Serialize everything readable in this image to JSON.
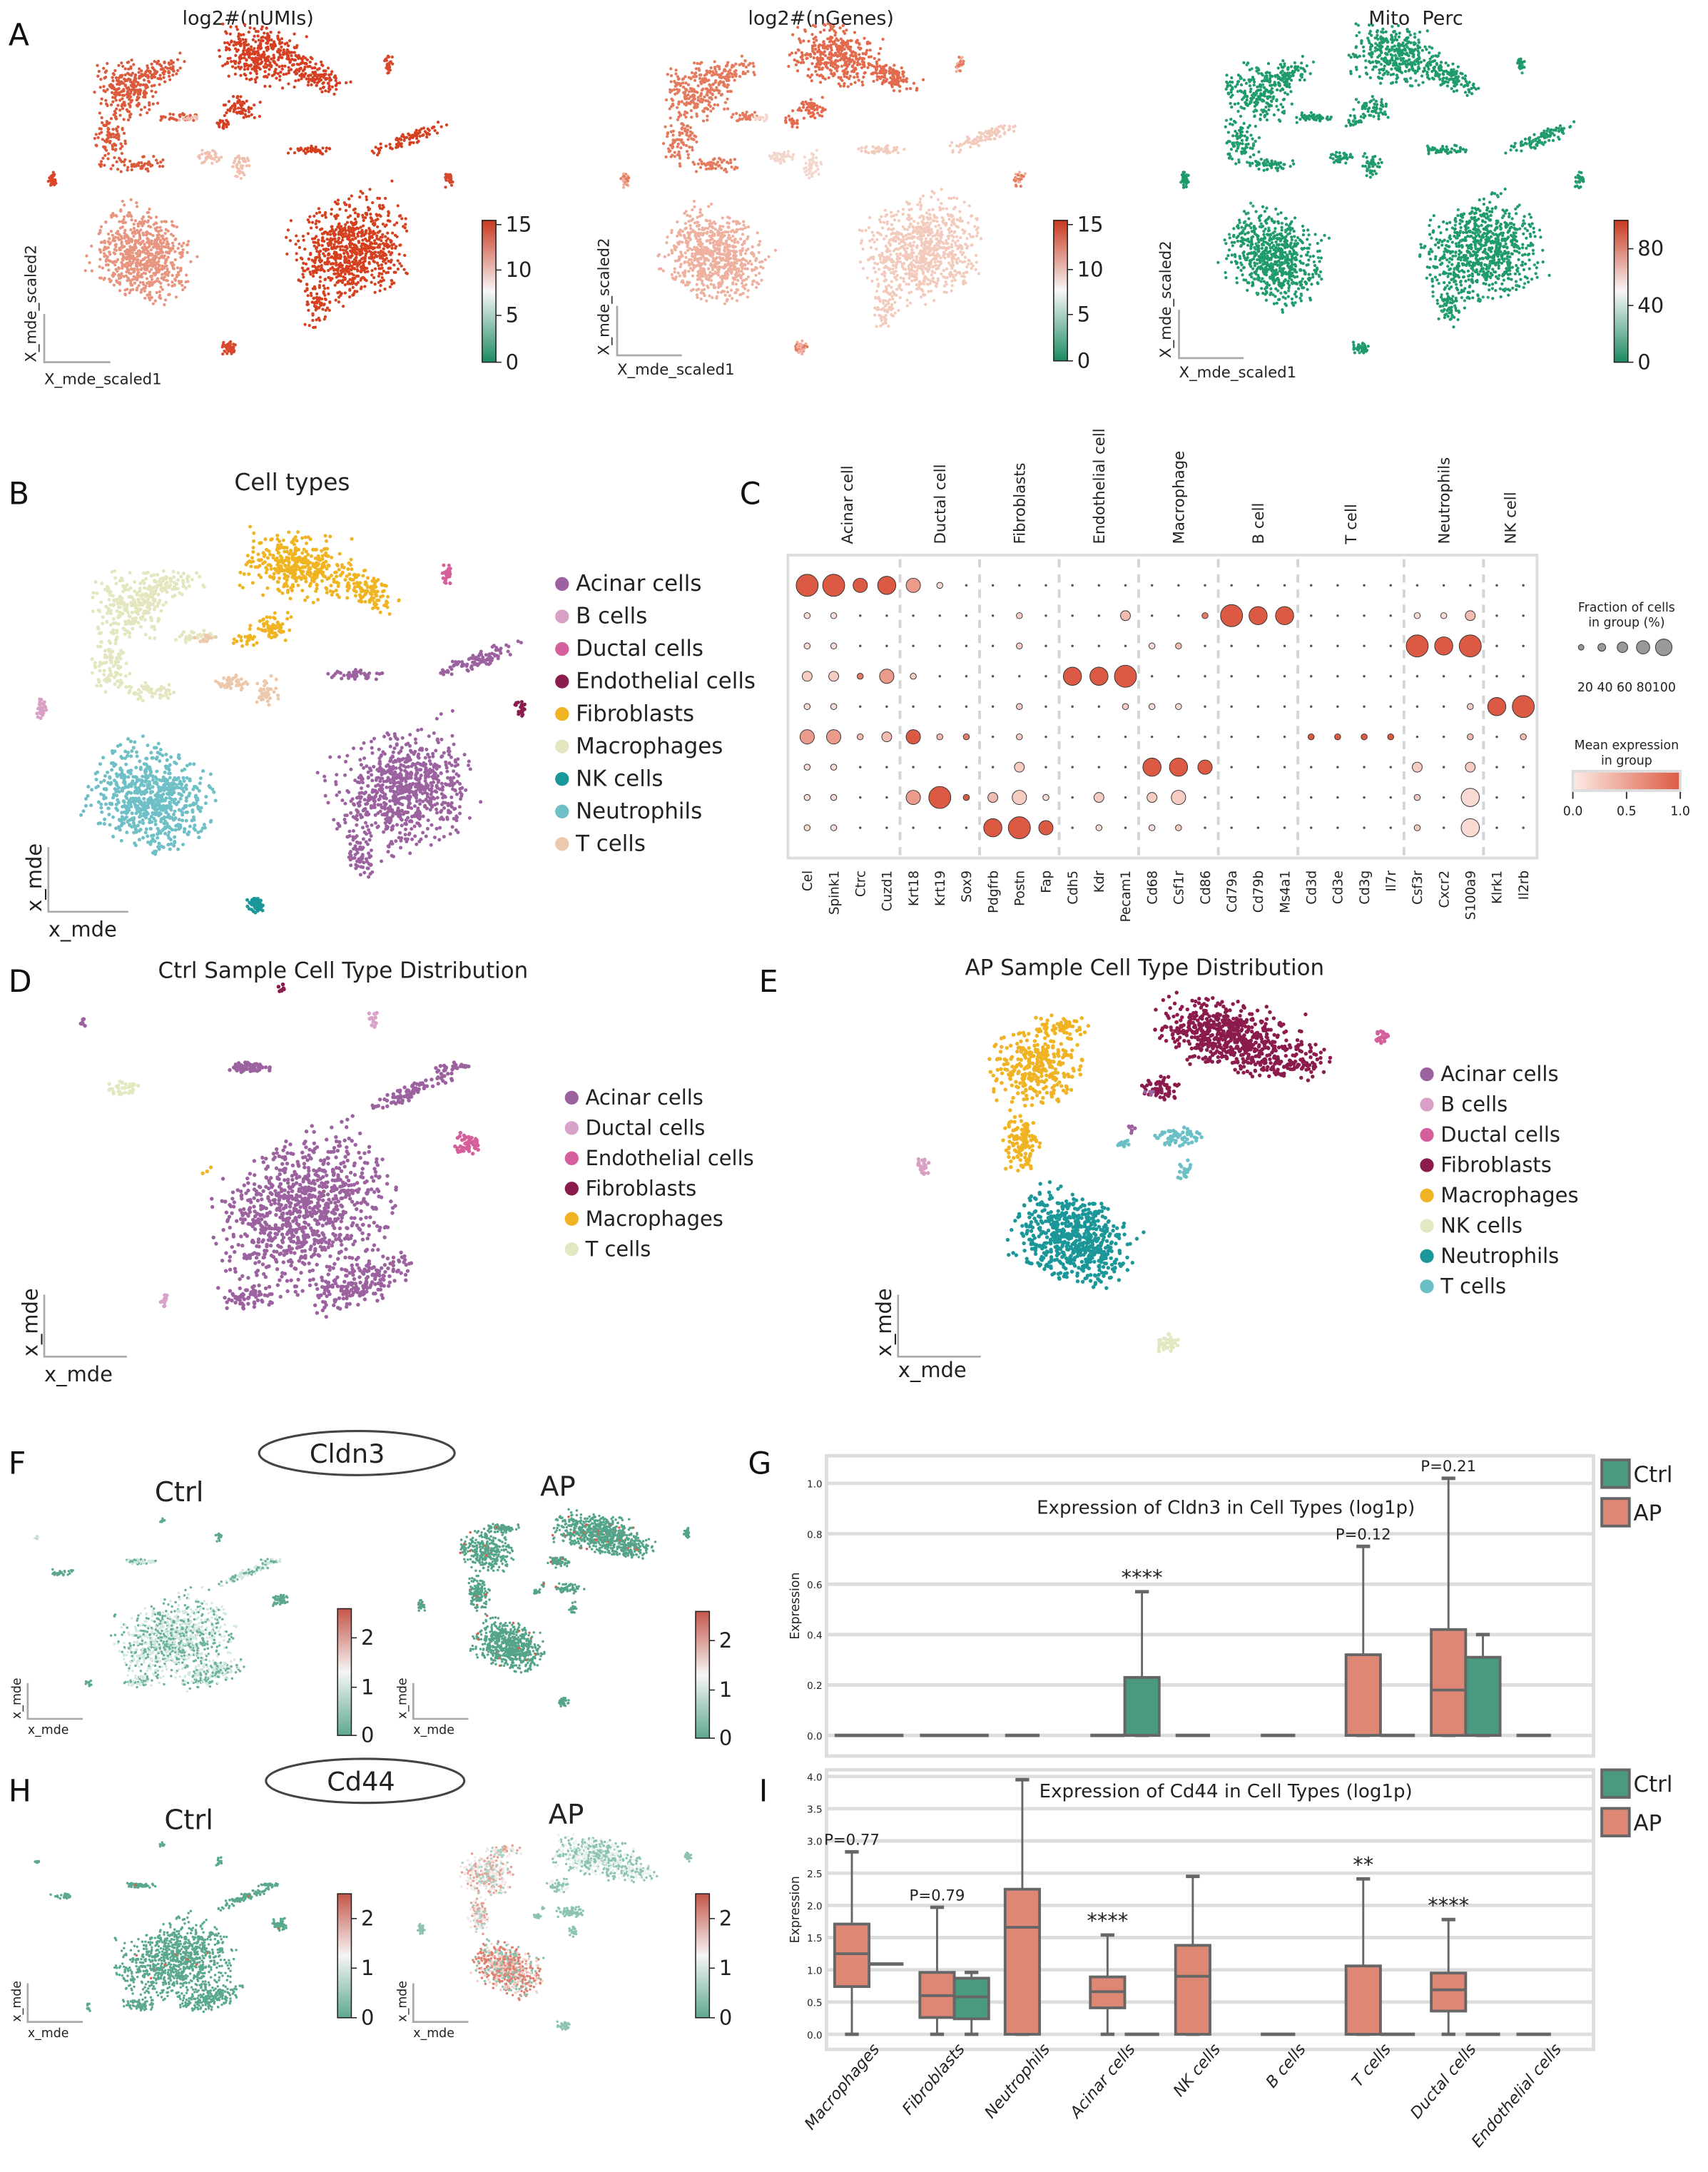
{
  "panel_letters": {
    "A": "A",
    "B": "B",
    "C": "C",
    "D": "D",
    "E": "E",
    "F": "F",
    "G": "G",
    "H": "H",
    "I": "I"
  },
  "panel_a": {
    "titles": [
      "log2#(nUMIs)",
      "log2#(nGenes)",
      "Mito  Perc"
    ],
    "xlabel": "X_mde_scaled1",
    "ylabel": "X_mde_scaled2",
    "colorbar_ticks": [
      [
        "15",
        "10",
        "5",
        "0"
      ],
      [
        "15",
        "10",
        "5",
        "0"
      ],
      [
        "80",
        "40",
        "0"
      ]
    ]
  },
  "panel_b": {
    "title": "Cell types",
    "xlabel": "x_mde",
    "ylabel": "x_mde",
    "legend": [
      {
        "label": "Acinar cells",
        "color": "#9c62a0"
      },
      {
        "label": "B cells",
        "color": "#d9a0c6"
      },
      {
        "label": "Ductal cells",
        "color": "#d5609b"
      },
      {
        "label": "Endothelial cells",
        "color": "#8a1d4e"
      },
      {
        "label": "Fibroblasts",
        "color": "#f0b422"
      },
      {
        "label": "Macrophages",
        "color": "#e3e6bf"
      },
      {
        "label": "NK cells",
        "color": "#1a9799"
      },
      {
        "label": "Neutrophils",
        "color": "#6fbfc6"
      },
      {
        "label": "T cells",
        "color": "#ecc9ad"
      }
    ]
  },
  "panel_d": {
    "title": "Ctrl Sample Cell Type Distribution",
    "xlabel": "x_mde",
    "ylabel": "x_mde",
    "legend": [
      {
        "label": "Acinar cells",
        "color": "#9c62a0"
      },
      {
        "label": "Ductal cells",
        "color": "#d9a3c9"
      },
      {
        "label": "Endothelial cells",
        "color": "#d55f9b"
      },
      {
        "label": "Fibroblasts",
        "color": "#8b1a4d"
      },
      {
        "label": "Macrophages",
        "color": "#efb323"
      },
      {
        "label": "T cells",
        "color": "#e4e8c2"
      }
    ]
  },
  "panel_e": {
    "title": "AP Sample Cell Type Distribution",
    "xlabel": "x_mde",
    "ylabel": "x_mde",
    "legend": [
      {
        "label": "Acinar cells",
        "color": "#9c62a0"
      },
      {
        "label": "B cells",
        "color": "#d9a0c6"
      },
      {
        "label": "Ductal cells",
        "color": "#d55f9b"
      },
      {
        "label": "Fibroblasts",
        "color": "#8b1a4d"
      },
      {
        "label": "Macrophages",
        "color": "#efb323"
      },
      {
        "label": "NK cells",
        "color": "#e4e8c2"
      },
      {
        "label": "Neutrophils",
        "color": "#1b9799"
      },
      {
        "label": "T cells",
        "color": "#6bbfc6"
      }
    ]
  },
  "panel_f": {
    "gene": "Cldn3",
    "ctrl": "Ctrl",
    "ap": "AP",
    "xlabel": "x_mde",
    "ylabel": "x_mde",
    "colorbar_ticks": [
      "2",
      "1",
      "0"
    ]
  },
  "panel_h": {
    "gene": "Cd44",
    "ctrl": "Ctrl",
    "ap": "AP",
    "xlabel": "x_mde",
    "ylabel": "x_mde",
    "colorbar_ticks": [
      "2",
      "1",
      "0"
    ]
  },
  "colors": {
    "ctrl": "#4a9a82",
    "ap": "#de8775",
    "box_edge": "#666666",
    "grid": "#dddddd"
  },
  "chart_data": [
    {
      "id": "C",
      "type": "dotplot",
      "groups": [
        {
          "label": "Acinar cell",
          "genes": [
            "Cel",
            "Spink1",
            "Ctrc",
            "Cuzd1"
          ]
        },
        {
          "label": "Ductal cell",
          "genes": [
            "Krt18",
            "Krt19",
            "Sox9"
          ]
        },
        {
          "label": "Fibroblasts",
          "genes": [
            "Pdgfrb",
            "Postn",
            "Fap"
          ]
        },
        {
          "label": "Endothelial cell",
          "genes": [
            "Cdh5",
            "Kdr",
            "Pecam1"
          ]
        },
        {
          "label": "Macrophage",
          "genes": [
            "Cd68",
            "Csf1r",
            "Cd86"
          ]
        },
        {
          "label": "B cell",
          "genes": [
            "Cd79a",
            "Cd79b",
            "Ms4a1"
          ]
        },
        {
          "label": "T cell",
          "genes": [
            "Cd3d",
            "Cd3e",
            "Cd3g",
            "Il7r"
          ]
        },
        {
          "label": "Neutrophils",
          "genes": [
            "Csf3r",
            "Cxcr2",
            "S100a9"
          ]
        },
        {
          "label": "NK cell",
          "genes": [
            "Klrk1",
            "Il2rb"
          ]
        }
      ],
      "value_note": "each entry: [fraction level 0-5 (0=~0%,5=~100%), mean expression level 0-9 (0=0.0,9=1.0)]; omitted genes ~0",
      "rows": [
        {
          "Cel": [
            5,
            9
          ],
          "Spink1": [
            5,
            9
          ],
          "Ctrc": [
            3,
            9
          ],
          "Cuzd1": [
            4,
            9
          ],
          "Krt18": [
            3,
            5
          ],
          "Krt19": [
            1,
            1
          ]
        },
        {
          "Cel": [
            1,
            1
          ],
          "Spink1": [
            1,
            1
          ],
          "Postn": [
            1,
            2
          ],
          "Pecam1": [
            2,
            3
          ],
          "Cd86": [
            1,
            7
          ],
          "Cd79a": [
            5,
            9
          ],
          "Cd79b": [
            4,
            9
          ],
          "Ms4a1": [
            4,
            9
          ],
          "Csf3r": [
            1,
            1
          ],
          "Cxcr2": [
            1,
            1
          ],
          "S100a9": [
            2,
            3
          ]
        },
        {
          "Cel": [
            1,
            1
          ],
          "Spink1": [
            1,
            1
          ],
          "Postn": [
            1,
            2
          ],
          "Cd68": [
            1,
            1
          ],
          "Csf1r": [
            1,
            3
          ],
          "Csf3r": [
            5,
            9
          ],
          "Cxcr2": [
            4,
            9
          ],
          "S100a9": [
            5,
            9
          ]
        },
        {
          "Cel": [
            2,
            2
          ],
          "Spink1": [
            2,
            2
          ],
          "Ctrc": [
            1,
            7
          ],
          "Cuzd1": [
            3,
            5
          ],
          "Krt18": [
            1,
            2
          ],
          "Cdh5": [
            4,
            9
          ],
          "Kdr": [
            4,
            9
          ],
          "Pecam1": [
            5,
            9
          ]
        },
        {
          "Cel": [
            1,
            1
          ],
          "Spink1": [
            1,
            1
          ],
          "Postn": [
            1,
            2
          ],
          "Pecam1": [
            1,
            2
          ],
          "Cd68": [
            1,
            1
          ],
          "Csf1r": [
            1,
            1
          ],
          "S100a9": [
            1,
            2
          ],
          "Klrk1": [
            4,
            9
          ],
          "Il2rb": [
            5,
            9
          ]
        },
        {
          "Cel": [
            3,
            5
          ],
          "Spink1": [
            3,
            5
          ],
          "Ctrc": [
            1,
            3
          ],
          "Cuzd1": [
            2,
            3
          ],
          "Krt18": [
            3,
            9
          ],
          "Krt19": [
            1,
            3
          ],
          "Sox9": [
            1,
            7
          ],
          "Postn": [
            1,
            2
          ],
          "Cd3d": [
            1,
            9
          ],
          "Cd3e": [
            1,
            9
          ],
          "Cd3g": [
            1,
            9
          ],
          "Il7r": [
            1,
            9
          ],
          "S100a9": [
            1,
            3
          ],
          "Il2rb": [
            1,
            3
          ]
        },
        {
          "Cel": [
            1,
            1
          ],
          "Spink1": [
            1,
            1
          ],
          "Postn": [
            2,
            2
          ],
          "Cd68": [
            4,
            9
          ],
          "Csf1r": [
            4,
            9
          ],
          "Cd86": [
            3,
            9
          ],
          "Csf3r": [
            2,
            2
          ],
          "S100a9": [
            2,
            2
          ]
        },
        {
          "Cel": [
            1,
            1
          ],
          "Spink1": [
            1,
            1
          ],
          "Krt18": [
            3,
            5
          ],
          "Krt19": [
            5,
            9
          ],
          "Sox9": [
            1,
            9
          ],
          "Pdgfrb": [
            2,
            3
          ],
          "Postn": [
            3,
            2
          ],
          "Fap": [
            1,
            1
          ],
          "Kdr": [
            2,
            2
          ],
          "Cd68": [
            2,
            2
          ],
          "Csf1r": [
            3,
            2
          ],
          "Csf3r": [
            1,
            2
          ],
          "S100a9": [
            4,
            1
          ]
        },
        {
          "Cel": [
            1,
            1
          ],
          "Spink1": [
            1,
            1
          ],
          "Pdgfrb": [
            4,
            9
          ],
          "Postn": [
            5,
            9
          ],
          "Fap": [
            3,
            9
          ],
          "Kdr": [
            1,
            1
          ],
          "Cd68": [
            1,
            1
          ],
          "Csf1r": [
            1,
            2
          ],
          "Csf3r": [
            1,
            2
          ],
          "S100a9": [
            4,
            1
          ]
        }
      ],
      "legend": {
        "size_title": [
          "Fraction of cells",
          "in group (%)"
        ],
        "size_ticks": "20 40 60 80100",
        "color_title": [
          "Mean expression",
          "in group"
        ],
        "color_ticks": [
          "0.0",
          "0.5",
          "1.0"
        ]
      }
    },
    {
      "id": "G",
      "type": "box",
      "title": "Expression of Cldn3 in Cell Types (log1p)",
      "ylabel": "Expression",
      "ylim": [
        -0.05,
        1.08
      ],
      "yticks": [
        "0.0",
        "0.2",
        "0.4",
        "0.6",
        "0.8",
        "1.0"
      ],
      "legend": [
        "Ctrl",
        "AP"
      ],
      "stats_order": "[min, q1, median, q3, max]; single number = collapsed box",
      "categories": [
        {
          "name": "Macrophages",
          "AP": 0,
          "Ctrl": 0
        },
        {
          "name": "Fibroblasts",
          "AP": 0,
          "Ctrl": 0
        },
        {
          "name": "Neutrophils",
          "AP": 0,
          "Ctrl": null
        },
        {
          "name": "Acinar cells",
          "AP": 0,
          "Ctrl": [
            0,
            0,
            0,
            0.23,
            0.57
          ],
          "annotation": "****",
          "annotation_on": "Ctrl"
        },
        {
          "name": "NK cells",
          "AP": 0,
          "Ctrl": null
        },
        {
          "name": "B cells",
          "AP": 0,
          "Ctrl": null
        },
        {
          "name": "T cells",
          "AP": [
            0,
            0,
            0,
            0.32,
            0.75
          ],
          "Ctrl": 0,
          "annotation": "P=0.12",
          "annotation_on": "AP"
        },
        {
          "name": "Ductal cells",
          "AP": [
            0,
            0,
            0.18,
            0.42,
            1.02
          ],
          "Ctrl": [
            0,
            0,
            0,
            0.31,
            0.4
          ],
          "annotation": "P=0.21",
          "annotation_on": "AP"
        },
        {
          "name": "Endothelial cells",
          "AP": 0,
          "Ctrl": null
        }
      ]
    },
    {
      "id": "I",
      "type": "box",
      "title": "Expression of Cd44 in Cell Types (log1p)",
      "ylabel": "Expression",
      "ylim": [
        -0.25,
        4.1
      ],
      "yticks": [
        "0.0",
        "0.5",
        "1.0",
        "1.5",
        "2.0",
        "2.5",
        "3.0",
        "3.5",
        "4.0"
      ],
      "legend": [
        "Ctrl",
        "AP"
      ],
      "stats_order": "[min, q1, median, q3, max]; single number = collapsed box",
      "categories": [
        {
          "name": "Macrophages",
          "AP": [
            0,
            0.74,
            1.25,
            1.71,
            2.83
          ],
          "Ctrl": 1.09,
          "annotation": "P=0.77",
          "annotation_on": "AP"
        },
        {
          "name": "Fibroblasts",
          "AP": [
            0,
            0.26,
            0.6,
            0.96,
            1.97
          ],
          "Ctrl": [
            0,
            0.24,
            0.58,
            0.87,
            0.96
          ],
          "annotation": "P=0.79",
          "annotation_on": "AP"
        },
        {
          "name": "Neutrophils",
          "AP": [
            0,
            0,
            1.66,
            2.25,
            3.95
          ],
          "Ctrl": null
        },
        {
          "name": "Acinar cells",
          "AP": [
            0,
            0.41,
            0.66,
            0.89,
            1.54
          ],
          "Ctrl": 0,
          "annotation": "****",
          "annotation_on": "AP"
        },
        {
          "name": "NK cells",
          "AP": [
            0,
            0,
            0.9,
            1.38,
            2.45
          ],
          "Ctrl": null
        },
        {
          "name": "B cells",
          "AP": 0,
          "Ctrl": null
        },
        {
          "name": "T cells",
          "AP": [
            0,
            0,
            0,
            1.06,
            2.41
          ],
          "Ctrl": 0,
          "annotation": "**",
          "annotation_on": "AP"
        },
        {
          "name": "Ductal cells",
          "AP": [
            0,
            0.36,
            0.69,
            0.95,
            1.78
          ],
          "Ctrl": 0,
          "annotation": "****",
          "annotation_on": "AP"
        },
        {
          "name": "Endothelial cells",
          "AP": 0,
          "Ctrl": null
        }
      ]
    }
  ]
}
